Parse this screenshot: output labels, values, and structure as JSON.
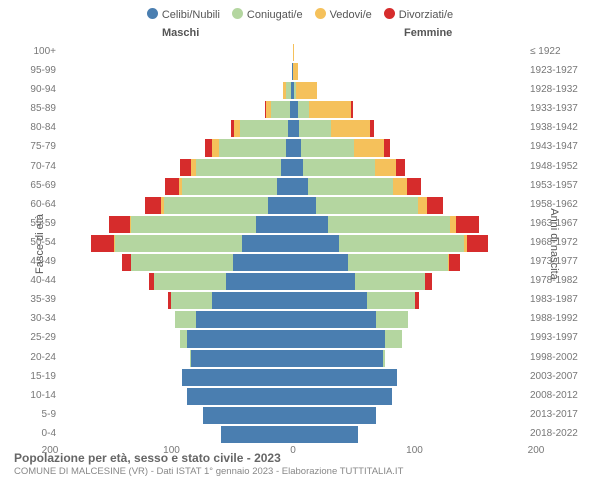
{
  "type": "population-pyramid",
  "title": "Popolazione per età, sesso e stato civile - 2023",
  "subtitle": "COMUNE DI MALCESINE (VR) - Dati ISTAT 1° gennaio 2023 - Elaborazione TUTTITALIA.IT",
  "header_left": "Maschi",
  "header_right": "Femmine",
  "yaxis_left_title": "Fasce di età",
  "yaxis_right_title": "Anni di nascita",
  "legend": [
    {
      "label": "Celibi/Nubili",
      "color": "#4a7eb0"
    },
    {
      "label": "Coniugati/e",
      "color": "#b4d6a0"
    },
    {
      "label": "Vedovi/e",
      "color": "#f5c15b"
    },
    {
      "label": "Divorziati/e",
      "color": "#d62c2c"
    }
  ],
  "colors": {
    "celibi": "#4a7eb0",
    "coniugati": "#b4d6a0",
    "vedovi": "#f5c15b",
    "divorziati": "#d62c2c",
    "text": "#777777",
    "grid": "#cccccc",
    "background": "#ffffff"
  },
  "x_axis": {
    "max": 200,
    "ticks": [
      200,
      100,
      0,
      100,
      200
    ]
  },
  "label_fontsize": 10,
  "title_fontsize": 12,
  "rows": [
    {
      "age": "100+",
      "birth": "≤ 1922",
      "m": [
        0,
        0,
        0,
        0
      ],
      "f": [
        0,
        0,
        1,
        0
      ]
    },
    {
      "age": "95-99",
      "birth": "1923-1927",
      "m": [
        1,
        0,
        0,
        0
      ],
      "f": [
        0,
        0,
        4,
        0
      ]
    },
    {
      "age": "90-94",
      "birth": "1928-1932",
      "m": [
        2,
        4,
        3,
        0
      ],
      "f": [
        1,
        2,
        18,
        0
      ]
    },
    {
      "age": "85-89",
      "birth": "1933-1937",
      "m": [
        3,
        16,
        4,
        1
      ],
      "f": [
        4,
        10,
        36,
        2
      ]
    },
    {
      "age": "80-84",
      "birth": "1938-1942",
      "m": [
        4,
        42,
        5,
        3
      ],
      "f": [
        5,
        28,
        34,
        3
      ]
    },
    {
      "age": "75-79",
      "birth": "1943-1947",
      "m": [
        6,
        58,
        6,
        6
      ],
      "f": [
        7,
        46,
        26,
        5
      ]
    },
    {
      "age": "70-74",
      "birth": "1948-1952",
      "m": [
        10,
        74,
        4,
        10
      ],
      "f": [
        9,
        62,
        18,
        8
      ]
    },
    {
      "age": "65-69",
      "birth": "1953-1957",
      "m": [
        14,
        82,
        3,
        12
      ],
      "f": [
        13,
        74,
        12,
        12
      ]
    },
    {
      "age": "60-64",
      "birth": "1958-1962",
      "m": [
        22,
        90,
        2,
        14
      ],
      "f": [
        20,
        88,
        8,
        14
      ]
    },
    {
      "age": "55-59",
      "birth": "1963-1967",
      "m": [
        32,
        108,
        1,
        18
      ],
      "f": [
        30,
        106,
        5,
        20
      ]
    },
    {
      "age": "50-54",
      "birth": "1968-1972",
      "m": [
        44,
        110,
        1,
        20
      ],
      "f": [
        40,
        108,
        3,
        18
      ]
    },
    {
      "age": "45-49",
      "birth": "1973-1977",
      "m": [
        52,
        88,
        0,
        8
      ],
      "f": [
        48,
        86,
        1,
        10
      ]
    },
    {
      "age": "40-44",
      "birth": "1978-1982",
      "m": [
        58,
        62,
        0,
        5
      ],
      "f": [
        54,
        60,
        0,
        6
      ]
    },
    {
      "age": "35-39",
      "birth": "1983-1987",
      "m": [
        70,
        36,
        0,
        2
      ],
      "f": [
        64,
        42,
        0,
        3
      ]
    },
    {
      "age": "30-34",
      "birth": "1988-1992",
      "m": [
        84,
        18,
        0,
        0
      ],
      "f": [
        72,
        28,
        0,
        0
      ]
    },
    {
      "age": "25-29",
      "birth": "1993-1997",
      "m": [
        92,
        6,
        0,
        0
      ],
      "f": [
        80,
        14,
        0,
        0
      ]
    },
    {
      "age": "20-24",
      "birth": "1998-2002",
      "m": [
        88,
        1,
        0,
        0
      ],
      "f": [
        78,
        2,
        0,
        0
      ]
    },
    {
      "age": "15-19",
      "birth": "2003-2007",
      "m": [
        96,
        0,
        0,
        0
      ],
      "f": [
        90,
        0,
        0,
        0
      ]
    },
    {
      "age": "10-14",
      "birth": "2008-2012",
      "m": [
        92,
        0,
        0,
        0
      ],
      "f": [
        86,
        0,
        0,
        0
      ]
    },
    {
      "age": "5-9",
      "birth": "2013-2017",
      "m": [
        78,
        0,
        0,
        0
      ],
      "f": [
        72,
        0,
        0,
        0
      ]
    },
    {
      "age": "0-4",
      "birth": "2018-2022",
      "m": [
        62,
        0,
        0,
        0
      ],
      "f": [
        56,
        0,
        0,
        0
      ]
    }
  ]
}
